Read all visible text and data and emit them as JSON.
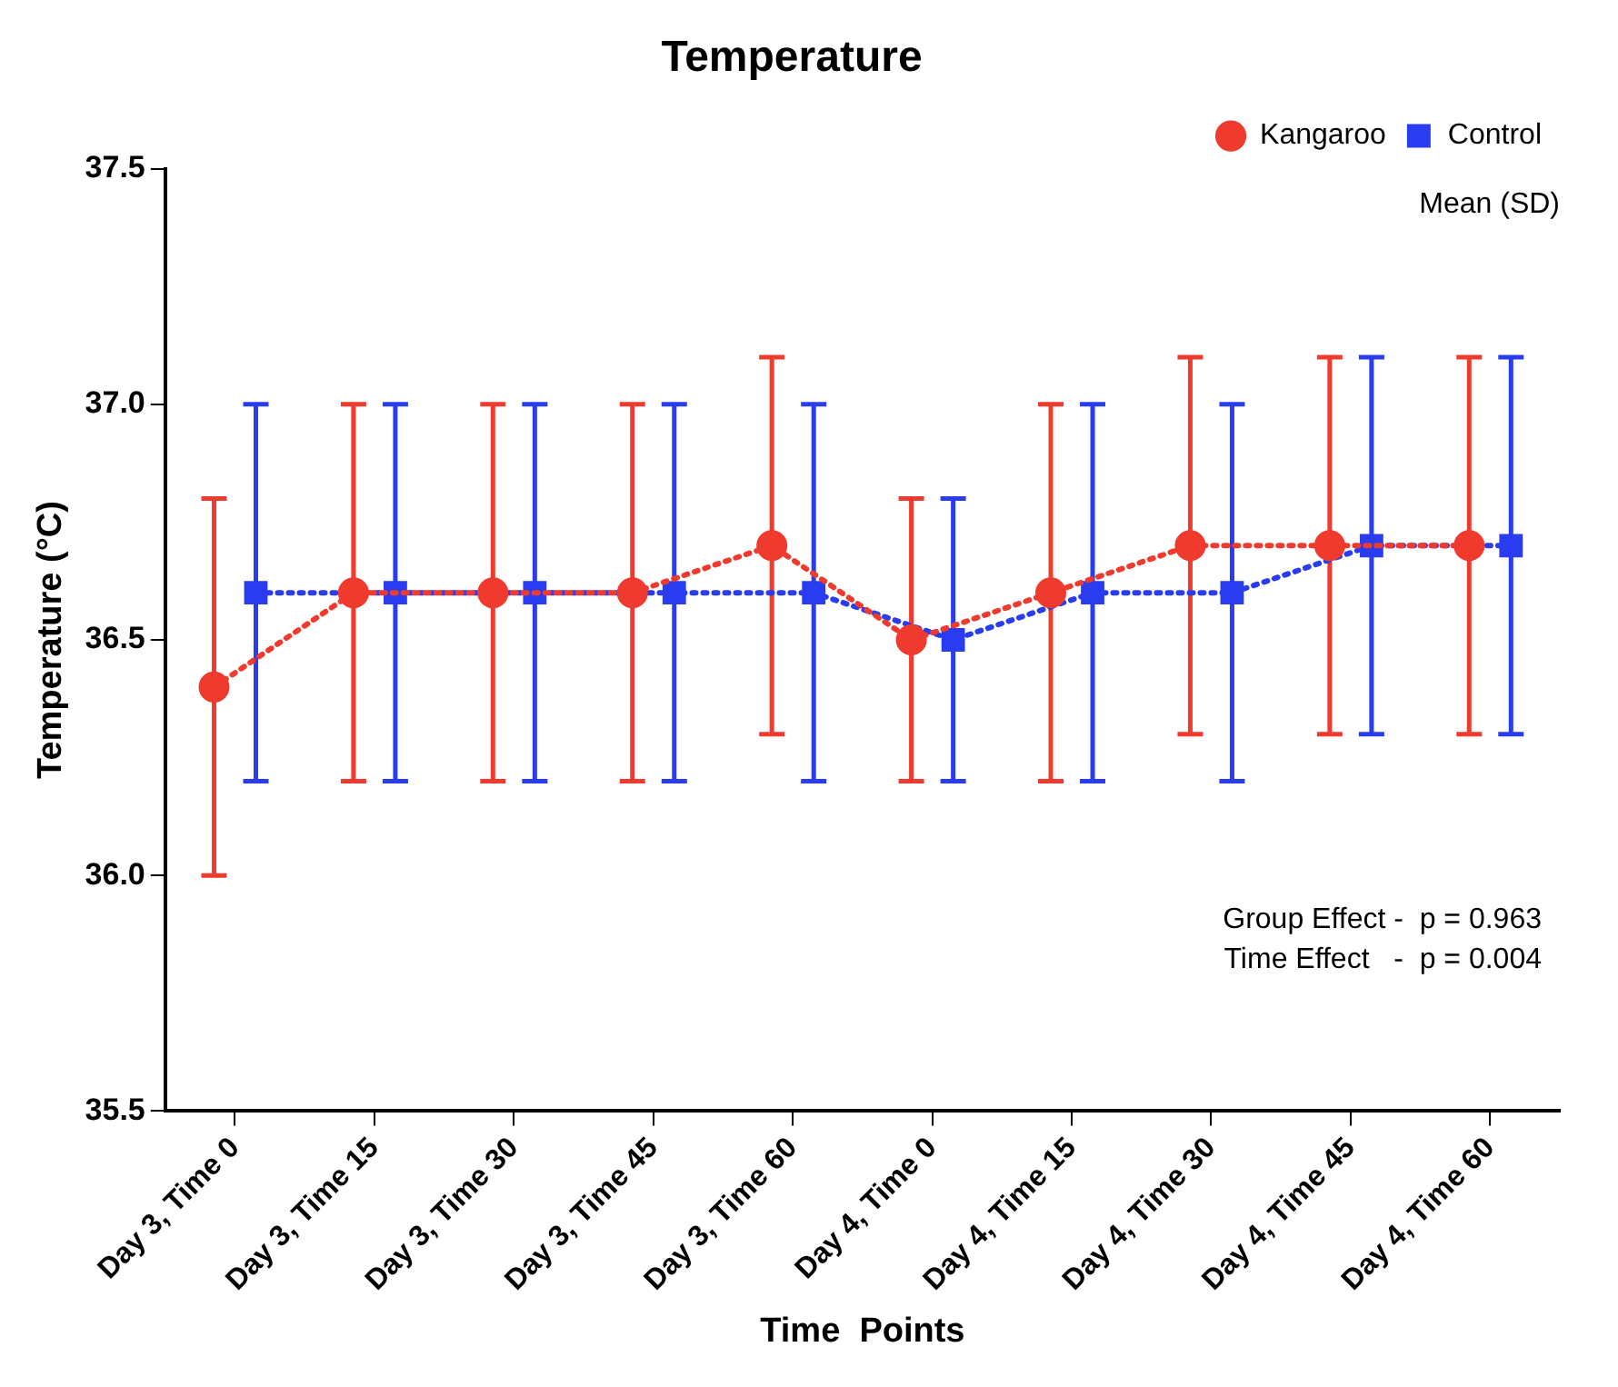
{
  "chart_data": {
    "type": "line",
    "title": "Temperature",
    "xlabel": "Time  Points",
    "ylabel": "Temperature (°C)",
    "categories": [
      "Day 3, Time 0",
      "Day 3, Time 15",
      "Day 3, Time 30",
      "Day 3, Time 45",
      "Day 3, Time 60",
      "Day 4, Time 0",
      "Day 4, Time 15",
      "Day 4, Time 30",
      "Day 4, Time 45",
      "Day 4, Time 60"
    ],
    "series": [
      {
        "name": "Kangaroo",
        "color": "#f03a2e",
        "marker": "circle",
        "values": [
          36.4,
          36.6,
          36.6,
          36.6,
          36.7,
          36.5,
          36.6,
          36.7,
          36.7,
          36.7
        ],
        "errors": [
          0.4,
          0.4,
          0.4,
          0.4,
          0.4,
          0.3,
          0.4,
          0.4,
          0.4,
          0.4
        ]
      },
      {
        "name": "Control",
        "color": "#2a3cf0",
        "marker": "square",
        "values": [
          36.6,
          36.6,
          36.6,
          36.6,
          36.6,
          36.5,
          36.6,
          36.6,
          36.7,
          36.7
        ],
        "errors": [
          0.4,
          0.4,
          0.4,
          0.4,
          0.4,
          0.3,
          0.4,
          0.4,
          0.4,
          0.4
        ]
      }
    ],
    "ylim": [
      35.5,
      37.5
    ],
    "yticks": [
      {
        "value": 35.5,
        "label": "35.5"
      },
      {
        "value": 36,
        "label": "36.0"
      },
      {
        "value": 36.5,
        "label": "36.5"
      },
      {
        "value": 37,
        "label": "37.0"
      },
      {
        "value": 37.5,
        "label": "37.5"
      }
    ],
    "line_style": "dotted",
    "grid": false,
    "legend": "top right",
    "annotations": [
      "Mean (SD)",
      "Group Effect -  p = 0.963",
      "Time Effect   -  p = 0.004"
    ]
  }
}
